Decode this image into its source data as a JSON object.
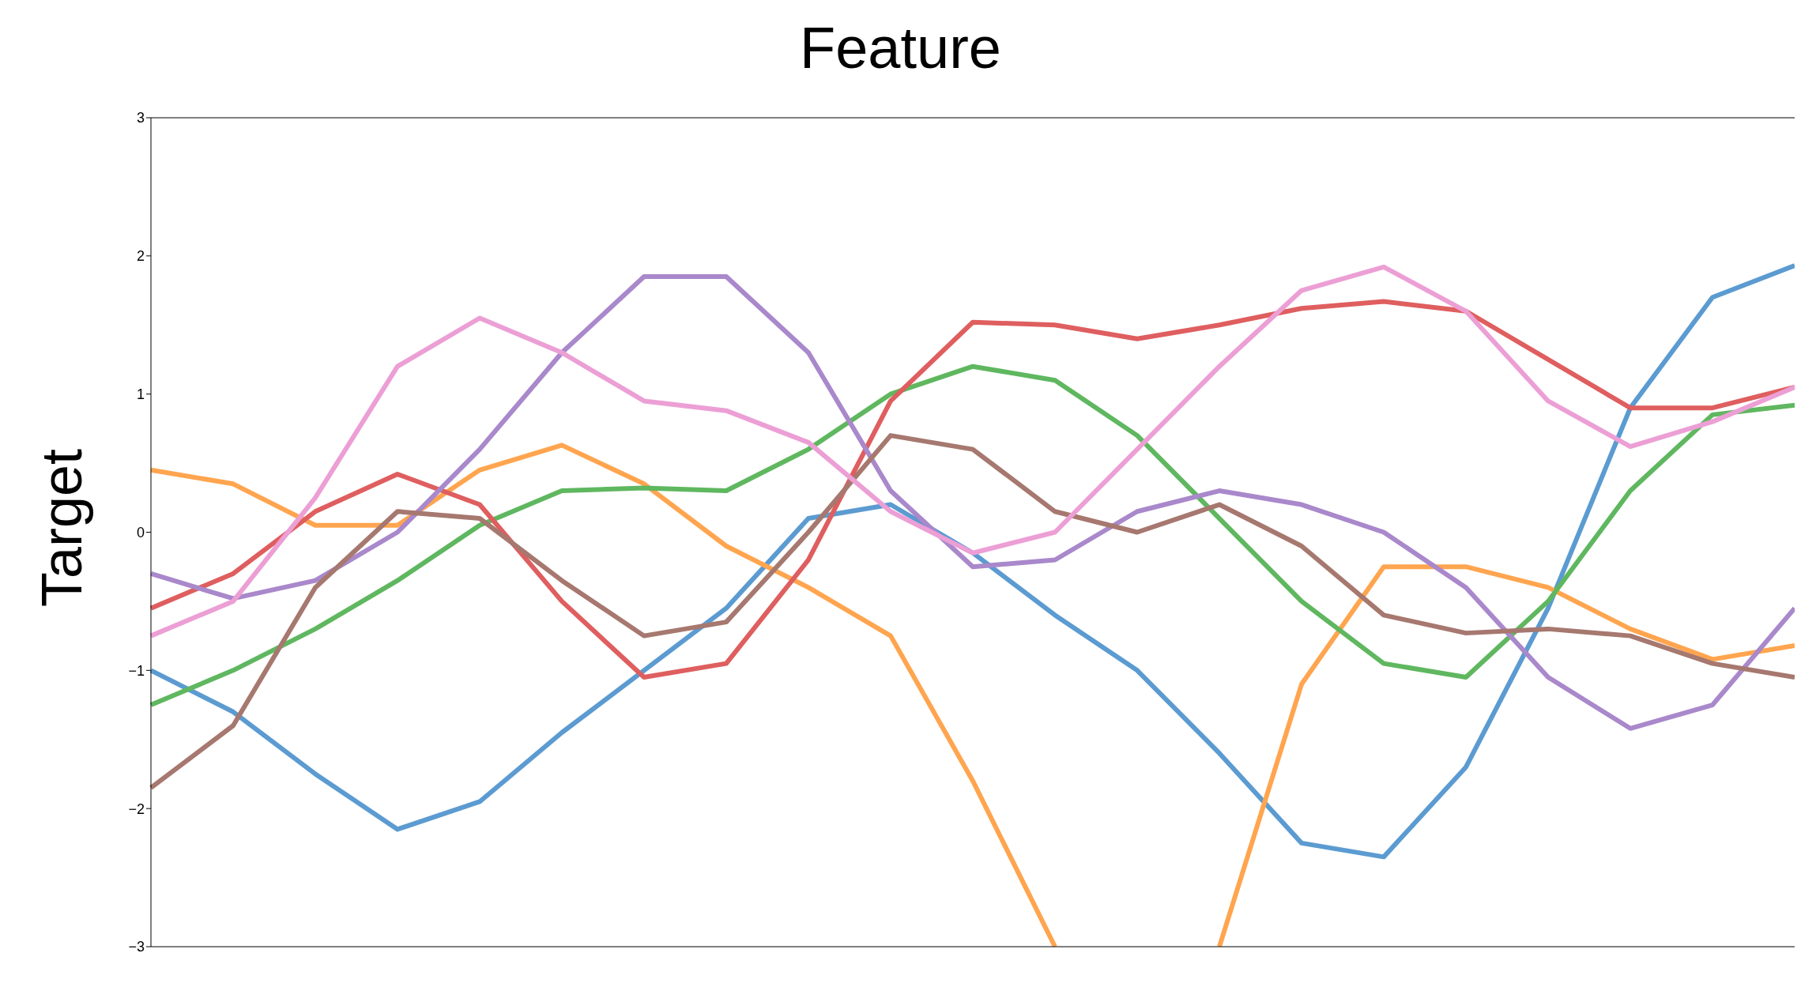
{
  "chart_data": {
    "type": "line",
    "title": "Feature",
    "ylabel": "Target",
    "categories": [
      null,
      null,
      null,
      null,
      null,
      null,
      null,
      null,
      null,
      null,
      null,
      null,
      null,
      null,
      null,
      null,
      null,
      null,
      null,
      null,
      null
    ],
    "ylim": [
      -3,
      3
    ],
    "yticks": [
      {
        "value": -3,
        "label": "−3"
      },
      {
        "value": -2,
        "label": "−2"
      },
      {
        "value": -1,
        "label": "−1"
      },
      0,
      1,
      2,
      3
    ],
    "grid": false,
    "legend": false,
    "marker": "none",
    "line_style": "solid",
    "series": [
      {
        "color": "#5b9bd1",
        "values": [
          -1.0,
          -1.3,
          -1.75,
          -2.15,
          -1.95,
          -1.45,
          -1.0,
          -0.55,
          0.1,
          0.2,
          -0.15,
          -0.6,
          -1.0,
          -1.6,
          -2.25,
          -2.35,
          -1.7,
          -0.55,
          0.9,
          1.7,
          1.93
        ]
      },
      {
        "color": "#ffa54f",
        "values": [
          0.45,
          0.35,
          0.05,
          0.05,
          0.45,
          0.63,
          0.35,
          -0.1,
          -0.4,
          -0.75,
          -1.8,
          -3,
          null,
          -3,
          -1.1,
          -0.25,
          -0.25,
          -0.4,
          -0.7,
          -0.92,
          -0.82
        ]
      },
      {
        "color": "#5fb75f",
        "values": [
          -1.25,
          -1.0,
          -0.7,
          -0.35,
          0.05,
          0.3,
          0.32,
          0.3,
          0.6,
          1.0,
          1.2,
          1.1,
          0.7,
          0.1,
          -0.5,
          -0.95,
          -1.05,
          -0.5,
          0.3,
          0.85,
          0.92
        ]
      },
      {
        "color": "#df5e5f",
        "values": [
          -0.55,
          -0.3,
          0.15,
          0.42,
          0.2,
          -0.5,
          -1.05,
          -0.95,
          -0.2,
          0.95,
          1.52,
          1.5,
          1.4,
          1.5,
          1.62,
          1.67,
          1.6,
          1.25,
          0.9,
          0.9,
          1.05
        ]
      },
      {
        "color": "#a988cb",
        "values": [
          -0.3,
          -0.48,
          -0.35,
          0.0,
          0.6,
          1.3,
          1.85,
          1.85,
          1.3,
          0.3,
          -0.25,
          -0.2,
          0.15,
          0.3,
          0.2,
          0.0,
          -0.4,
          -1.05,
          -1.42,
          -1.25,
          -0.55
        ]
      },
      {
        "color": "#a6786f",
        "values": [
          -1.85,
          -1.4,
          -0.4,
          0.15,
          0.1,
          -0.35,
          -0.75,
          -0.65,
          0.0,
          0.7,
          0.6,
          0.15,
          0.0,
          0.2,
          -0.1,
          -0.6,
          -0.73,
          -0.7,
          -0.75,
          -0.95,
          -1.05
        ]
      },
      {
        "color": "#ec9fd5",
        "values": [
          -0.75,
          -0.5,
          0.25,
          1.2,
          1.55,
          1.3,
          0.95,
          0.88,
          0.65,
          0.15,
          -0.15,
          0.0,
          0.6,
          1.2,
          1.75,
          1.92,
          1.6,
          0.95,
          0.62,
          0.8,
          1.05
        ]
      }
    ]
  }
}
